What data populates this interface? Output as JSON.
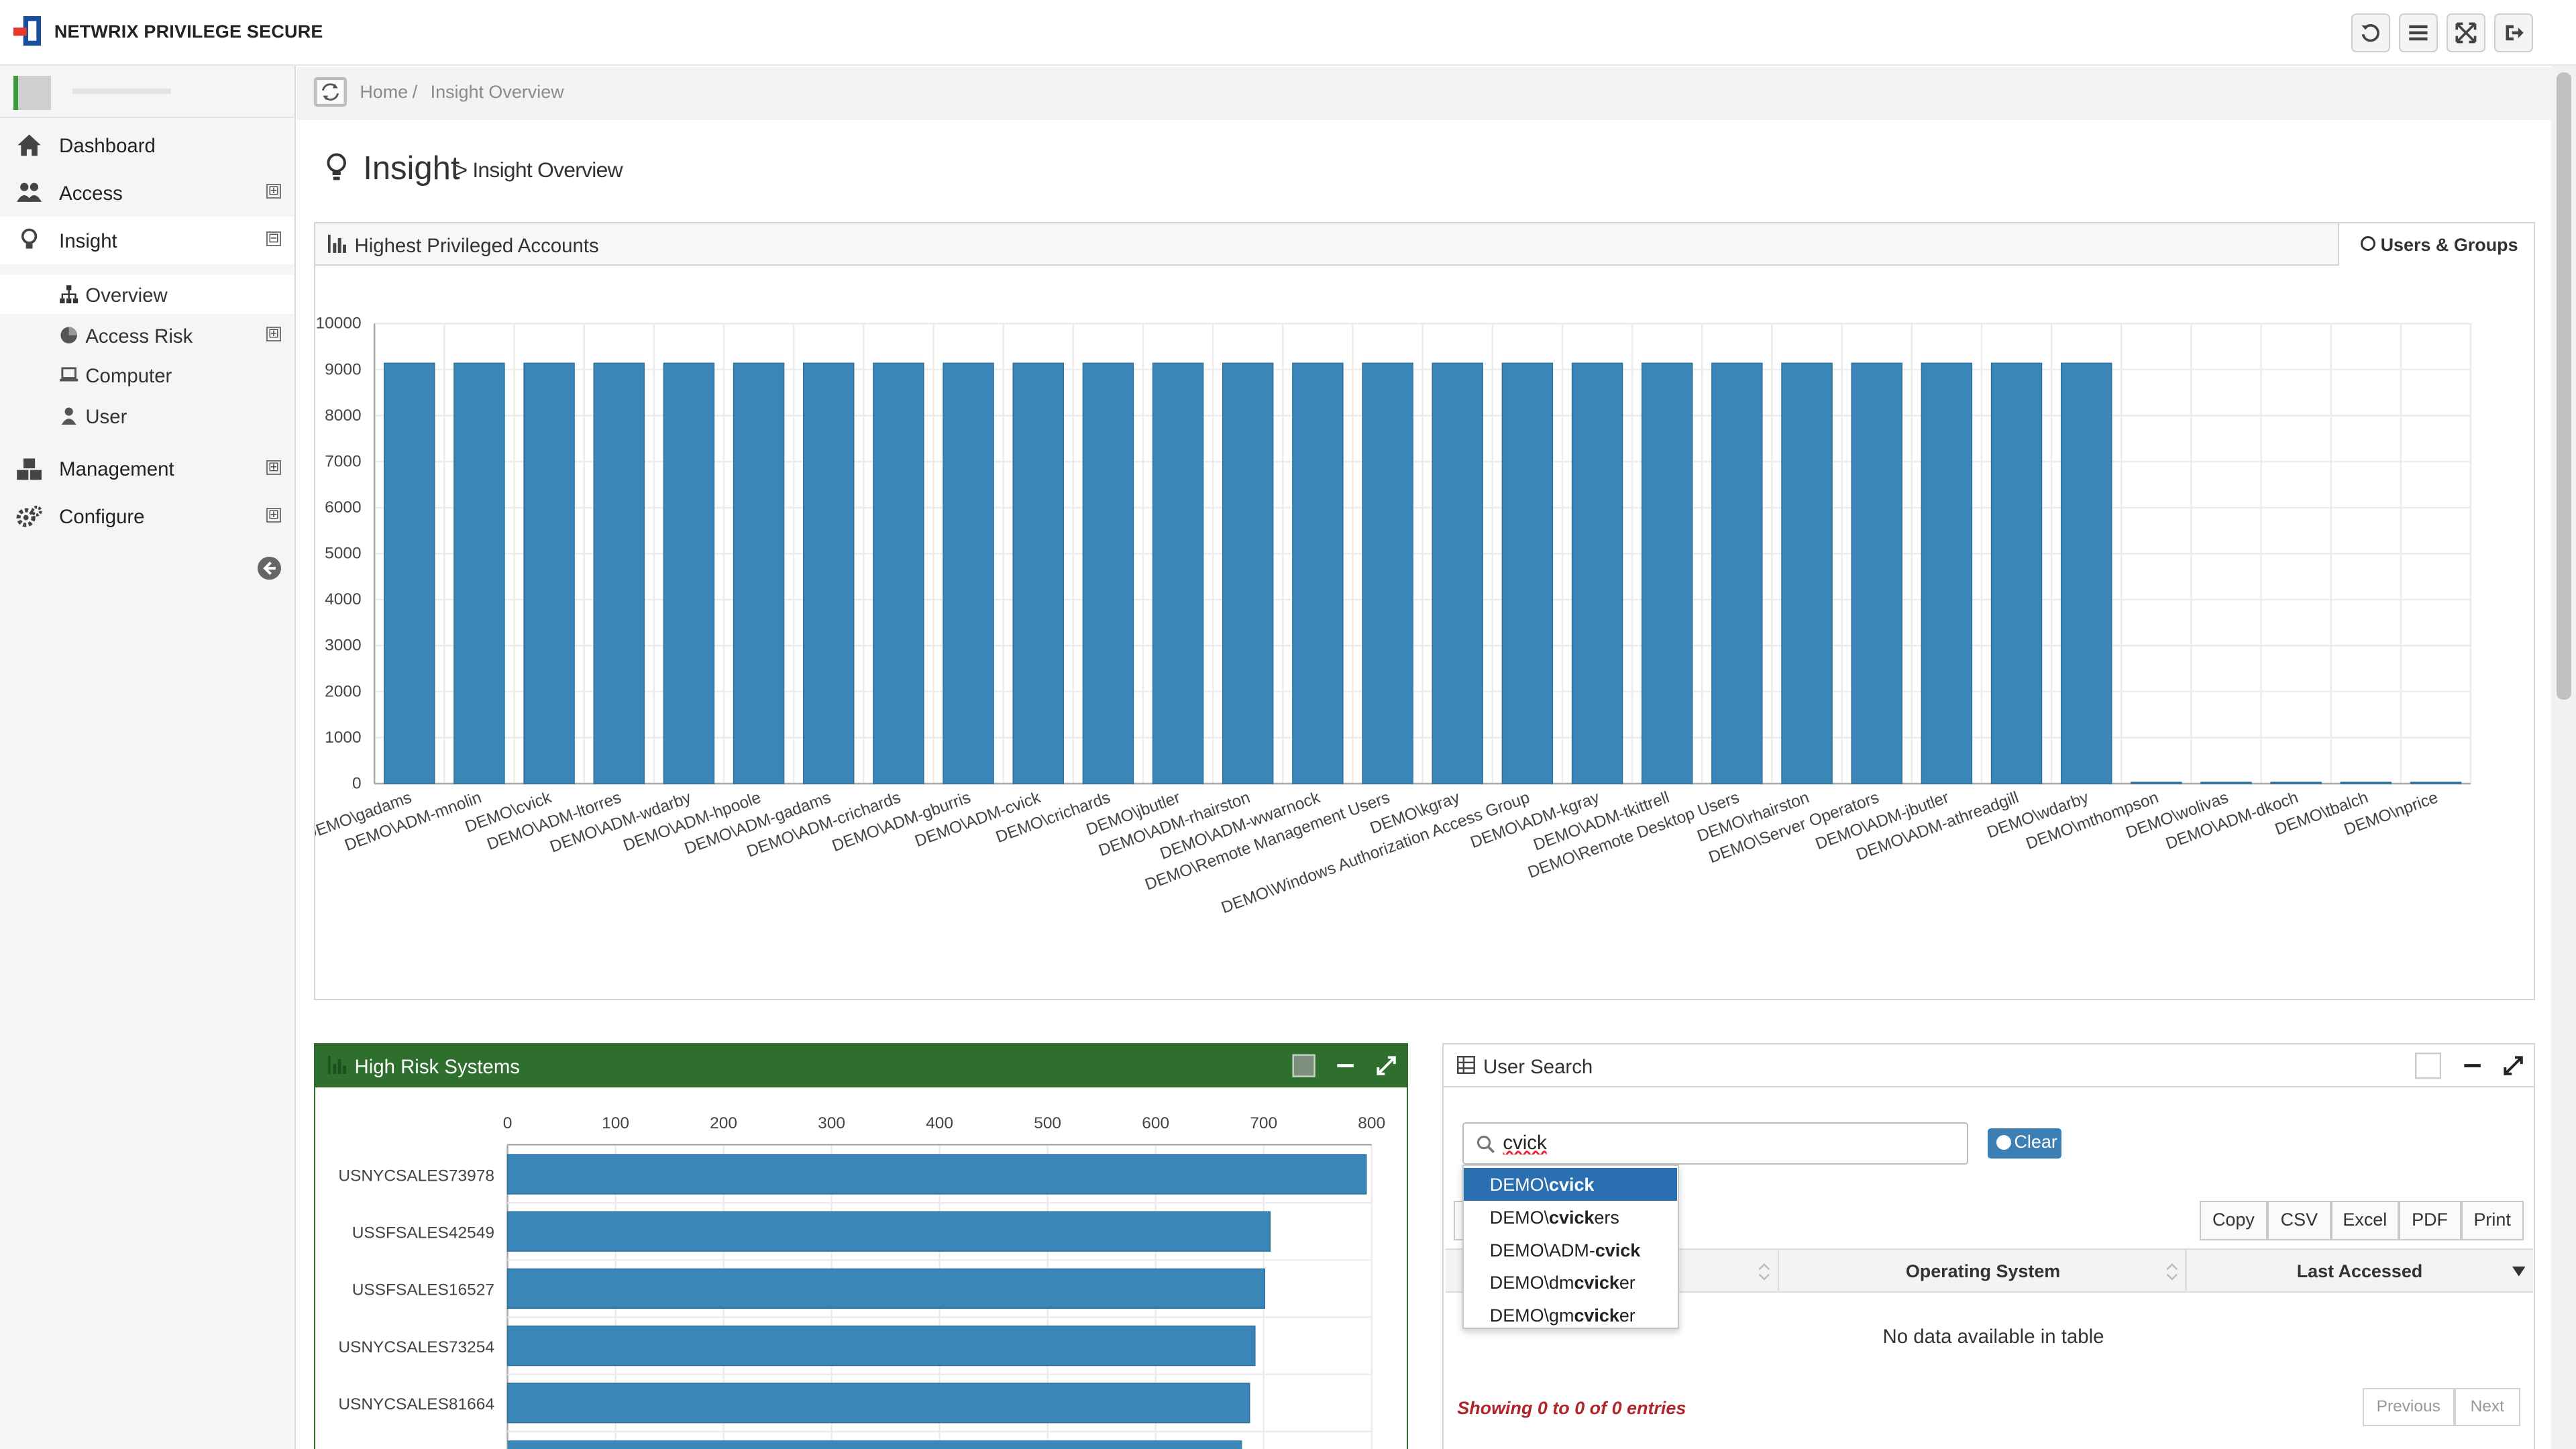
{
  "app": {
    "brand": "NETWRIX PRIVILEGE SECURE"
  },
  "topbar": {
    "buttons": [
      "refresh-icon",
      "list-icon",
      "fullscreen-icon",
      "logout-icon"
    ]
  },
  "sidebar": {
    "items": [
      {
        "label": "Dashboard",
        "icon": "home-icon"
      },
      {
        "label": "Access",
        "icon": "users-icon"
      },
      {
        "label": "Insight",
        "icon": "lightbulb-icon"
      },
      {
        "label": "Management",
        "icon": "cubes-icon"
      },
      {
        "label": "Configure",
        "icon": "gears-icon"
      }
    ],
    "subitems": [
      {
        "label": "Overview",
        "icon": "sitemap-icon"
      },
      {
        "label": "Access Risk",
        "icon": "pie-icon"
      },
      {
        "label": "Computer",
        "icon": "laptop-icon"
      },
      {
        "label": "User",
        "icon": "user-icon"
      }
    ],
    "expanders": {
      "plus": "⊞",
      "minus": "⊟"
    }
  },
  "breadcrumb": {
    "home": "Home",
    "sep": "/",
    "current": "Insight Overview"
  },
  "page": {
    "title": "Insight",
    "subtitle": "> Insight Overview"
  },
  "hpa_panel": {
    "title": "Highest Privileged Accounts",
    "tab": "Users & Groups"
  },
  "hrs_panel": {
    "title": "High Risk Systems"
  },
  "user_search": {
    "title": "User Search",
    "query": "cvick",
    "clear_label": "Clear",
    "export_buttons": [
      "Copy",
      "CSV",
      "Excel",
      "PDF",
      "Print"
    ],
    "columns": [
      "Operating System",
      "Last Accessed"
    ],
    "empty_text": "No data available in table",
    "showing": "Showing 0 to 0 of 0 entries",
    "prev": "Previous",
    "next": "Next",
    "suggestions": [
      {
        "pre": "DEMO\\",
        "match": "cvick",
        "post": ""
      },
      {
        "pre": "DEMO\\",
        "match": "cvick",
        "post": "ers"
      },
      {
        "pre": "DEMO\\ADM-",
        "match": "cvick",
        "post": ""
      },
      {
        "pre": "DEMO\\dm",
        "match": "cvick",
        "post": "er"
      },
      {
        "pre": "DEMO\\gm",
        "match": "cvick",
        "post": "er"
      }
    ]
  },
  "chart_data": [
    {
      "type": "bar",
      "title": "Highest Privileged Accounts",
      "categories": [
        "DEMO\\gadams",
        "DEMO\\ADM-mnolin",
        "DEMO\\cvick",
        "DEMO\\ADM-ltorres",
        "DEMO\\ADM-wdarby",
        "DEMO\\ADM-hpoole",
        "DEMO\\ADM-gadams",
        "DEMO\\ADM-crichards",
        "DEMO\\ADM-gburris",
        "DEMO\\ADM-cvick",
        "DEMO\\crichards",
        "DEMO\\jbutler",
        "DEMO\\ADM-rhairston",
        "DEMO\\ADM-wwarnock",
        "DEMO\\Remote Management Users",
        "DEMO\\kgray",
        "DEMO\\Windows Authorization Access Group",
        "DEMO\\ADM-kgray",
        "DEMO\\ADM-tkittrell",
        "DEMO\\Remote Desktop Users",
        "DEMO\\rhairston",
        "DEMO\\Server Operators",
        "DEMO\\ADM-jbutler",
        "DEMO\\ADM-athreadgill",
        "DEMO\\wdarby",
        "DEMO\\mthompson",
        "DEMO\\wolivas",
        "DEMO\\ADM-dkoch",
        "DEMO\\tbalch",
        "DEMO\\nprice"
      ],
      "values": [
        9140,
        9140,
        9140,
        9140,
        9140,
        9140,
        9140,
        9140,
        9140,
        9140,
        9140,
        9140,
        9140,
        9140,
        9140,
        9140,
        9140,
        9140,
        9140,
        9140,
        9140,
        9140,
        9140,
        9140,
        9140,
        0,
        0,
        0,
        0,
        0
      ],
      "yticks": [
        0,
        1000,
        2000,
        3000,
        4000,
        5000,
        6000,
        7000,
        8000,
        9000,
        10000
      ],
      "ylim": [
        0,
        10000
      ],
      "color": "#3a86b8"
    },
    {
      "type": "bar",
      "orientation": "horizontal",
      "title": "High Risk Systems",
      "categories": [
        "USNYCSALES73978",
        "USSFSALES42549",
        "USSFSALES16527",
        "USNYCSALES73254",
        "USNYCSALES81664"
      ],
      "values": [
        795,
        706,
        701,
        692,
        687
      ],
      "xticks": [
        0,
        100,
        200,
        300,
        400,
        500,
        600,
        700,
        800
      ],
      "xlim": [
        0,
        800
      ],
      "color": "#3a86b8"
    }
  ]
}
